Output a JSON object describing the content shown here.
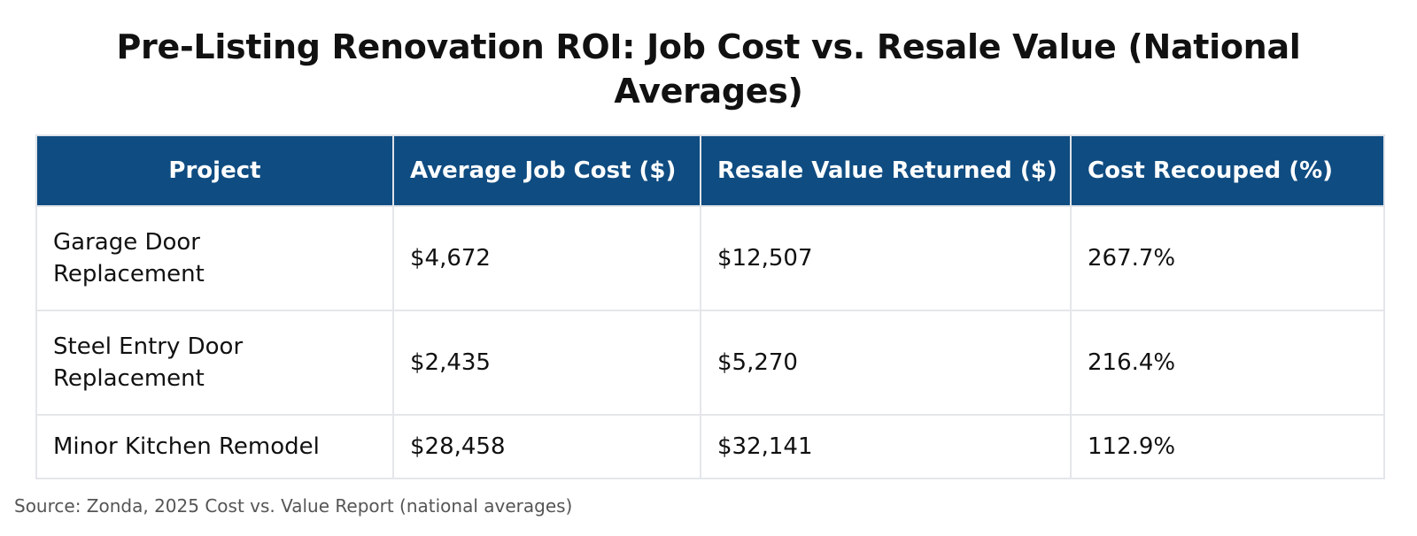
{
  "chart_data": {
    "type": "table",
    "title": "Pre-Listing Renovation ROI: Job Cost vs. Resale Value (National Averages)",
    "columns": [
      "Project",
      "Average Job Cost ($)",
      "Resale Value Returned ($)",
      "Cost Recouped (%)"
    ],
    "rows": [
      {
        "project": "Garage Door Replacement",
        "job_cost": "$4,672",
        "resale_value": "$12,507",
        "recouped": "267.7%"
      },
      {
        "project": "Steel Entry Door Replacement",
        "job_cost": "$2,435",
        "resale_value": "$5,270",
        "recouped": "216.4%"
      },
      {
        "project": "Minor Kitchen Remodel",
        "job_cost": "$28,458",
        "resale_value": "$32,141",
        "recouped": "112.9%"
      }
    ],
    "source": "Source: Zonda, 2025 Cost vs. Value Report (national averages)",
    "colors": {
      "header_bg": "#0f4c81",
      "header_text": "#ffffff",
      "grid": "#e4e6ea"
    }
  }
}
